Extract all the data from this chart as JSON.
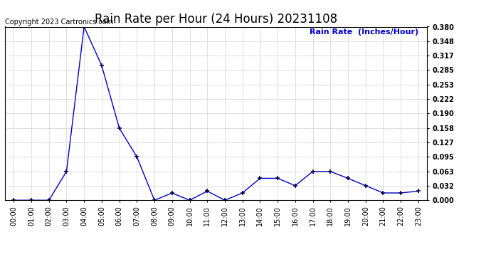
{
  "title": "Rain Rate per Hour (24 Hours) 20231108",
  "copyright_text": "Copyright 2023 Cartronics.com",
  "legend_label": "Rain Rate  (Inches/Hour)",
  "x_labels": [
    "00:00",
    "01:00",
    "02:00",
    "03:00",
    "04:00",
    "05:00",
    "06:00",
    "07:00",
    "08:00",
    "09:00",
    "10:00",
    "11:00",
    "12:00",
    "13:00",
    "14:00",
    "15:00",
    "16:00",
    "17:00",
    "18:00",
    "19:00",
    "20:00",
    "21:00",
    "22:00",
    "23:00"
  ],
  "y_values": [
    0.0,
    0.0,
    0.0,
    0.063,
    0.38,
    0.295,
    0.158,
    0.095,
    0.0,
    0.016,
    0.0,
    0.02,
    0.0,
    0.016,
    0.048,
    0.048,
    0.032,
    0.063,
    0.063,
    0.048,
    0.032,
    0.016,
    0.016,
    0.02
  ],
  "y_ticks": [
    0.0,
    0.032,
    0.063,
    0.095,
    0.127,
    0.158,
    0.19,
    0.222,
    0.253,
    0.285,
    0.317,
    0.348,
    0.38
  ],
  "ylim": [
    0.0,
    0.38
  ],
  "line_color": "#0000cc",
  "marker_color": "#000044",
  "bg_color": "#ffffff",
  "grid_color": "#bbbbbb",
  "title_fontsize": 12,
  "label_fontsize": 7,
  "copyright_fontsize": 7,
  "legend_fontsize": 8,
  "legend_color": "#0000cc"
}
